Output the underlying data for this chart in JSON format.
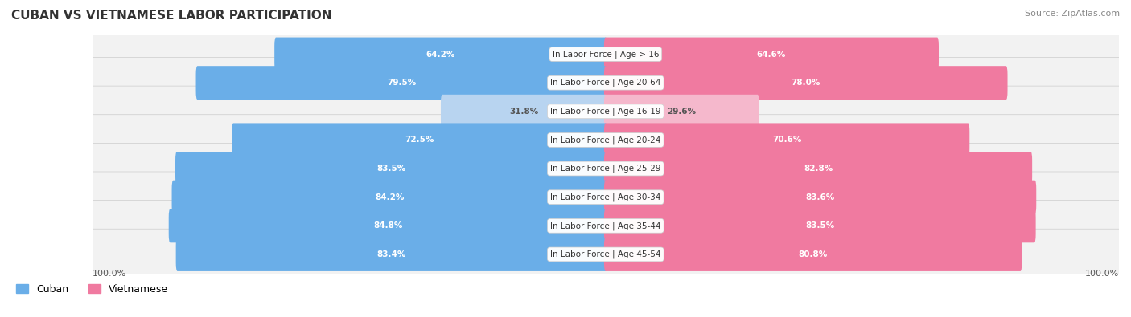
{
  "title": "CUBAN VS VIETNAMESE LABOR PARTICIPATION",
  "source": "Source: ZipAtlas.com",
  "categories": [
    "In Labor Force | Age > 16",
    "In Labor Force | Age 20-64",
    "In Labor Force | Age 16-19",
    "In Labor Force | Age 20-24",
    "In Labor Force | Age 25-29",
    "In Labor Force | Age 30-34",
    "In Labor Force | Age 35-44",
    "In Labor Force | Age 45-54"
  ],
  "cuban_values": [
    64.2,
    79.5,
    31.8,
    72.5,
    83.5,
    84.2,
    84.8,
    83.4
  ],
  "vietnamese_values": [
    64.6,
    78.0,
    29.6,
    70.6,
    82.8,
    83.6,
    83.5,
    80.8
  ],
  "cuban_color_strong": "#6aaee8",
  "cuban_color_light": "#b8d4f0",
  "vietnamese_color_strong": "#f07aa0",
  "vietnamese_color_light": "#f5b8cc",
  "row_bg_color": "#f2f2f2",
  "label_color_white": "#ffffff",
  "label_color_dark": "#555555",
  "max_value": 100.0,
  "bar_height": 0.58,
  "legend_cuban": "Cuban",
  "legend_vietnamese": "Vietnamese",
  "threshold_white": 50.0
}
